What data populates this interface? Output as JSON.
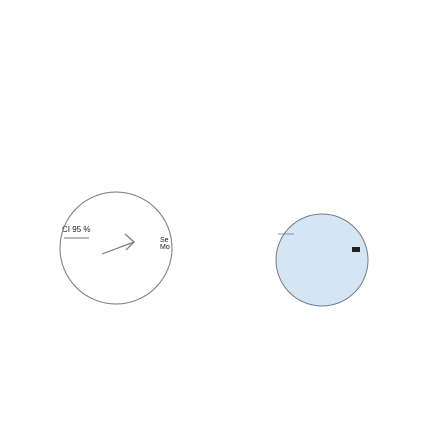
{
  "panels": [
    {
      "title": "",
      "ci_label": "CI 95 %",
      "markers": [
        "Se",
        "Mo"
      ]
    },
    {
      "title": "",
      "ci_label": "",
      "side_label": ""
    }
  ],
  "colors": {
    "ring_outline": "#777777",
    "pie_fill": "#d4e5f4",
    "pie_outline": "#6e7e8c",
    "legend_swatch": "#222222",
    "text": "#1a1a1a"
  },
  "chart_data": [
    {
      "type": "pie",
      "title": "",
      "ci_label": "CI 95 %",
      "slices": [
        {
          "label": "",
          "value": 100
        }
      ],
      "fill": "none",
      "markers": [
        "Se",
        "Mo"
      ],
      "legend": false
    },
    {
      "type": "pie",
      "title": "",
      "slices": [
        {
          "label": "",
          "value": 100
        }
      ],
      "fill": "#d4e5f4",
      "legend": "right"
    }
  ]
}
